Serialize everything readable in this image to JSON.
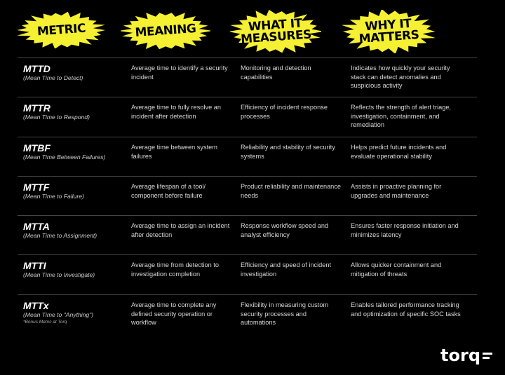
{
  "colors": {
    "accent": "#f5f032",
    "background": "#000000",
    "divider": "#444444"
  },
  "headers": [
    {
      "label": "METRIC"
    },
    {
      "label": "MEANING"
    },
    {
      "label": "WHAT IT\nMEASURES"
    },
    {
      "label": "WHY IT\nMATTERS"
    }
  ],
  "rows": [
    {
      "metric": "MTTD",
      "full": "(Mean Time to Detect)",
      "meaning": "Average time to identify a security incident",
      "measures": "Monitoring and detection capabilities",
      "matters": "Indicates how quickly your security stack can detect anomalies and suspicious activity"
    },
    {
      "metric": "MTTR",
      "full": "(Mean Time to Respond)",
      "meaning": "Average time to fully resolve an incident after detection",
      "measures": "Efficiency of incident response processes",
      "matters": "Reflects the strength of alert triage, investigation, containment, and remediation"
    },
    {
      "metric": "MTBF",
      "full": "(Mean Time Between Failures)",
      "meaning": "Average time between system failures",
      "measures": "Reliability and stability of security systems",
      "matters": "Helps predict future incidents and evaluate operational stability"
    },
    {
      "metric": "MTTF",
      "full": "(Mean Time to Failure)",
      "meaning": "Average lifespan of a tool/ component before failure",
      "measures": "Product reliability and maintenance needs",
      "matters": "Assists in proactive planning for upgrades and maintenance"
    },
    {
      "metric": "MTTA",
      "full": "(Mean Time to Assignment)",
      "meaning": "Average time to assign an incident after detection",
      "measures": "Response workflow speed and analyst efficiency",
      "matters": "Ensures faster response initiation and minimizes latency"
    },
    {
      "metric": "MTTI",
      "full": "(Mean Time to Investigate)",
      "meaning": "Average time from detection to investigation completion",
      "measures": "Efficiency and speed of incident investigation",
      "matters": "Allows quicker containment and mitigation of threats"
    },
    {
      "metric": "MTTx",
      "full": "(Mean Time to \"Anything\")",
      "note": "*Bonus Metric at Torq",
      "meaning": "Average time to complete any defined security operation or workflow",
      "measures": "Flexibility in measuring custom security processes and automations",
      "matters": "Enables tailored performance tracking and optimization of specific SOC tasks"
    }
  ],
  "logo": {
    "text": "torq"
  }
}
